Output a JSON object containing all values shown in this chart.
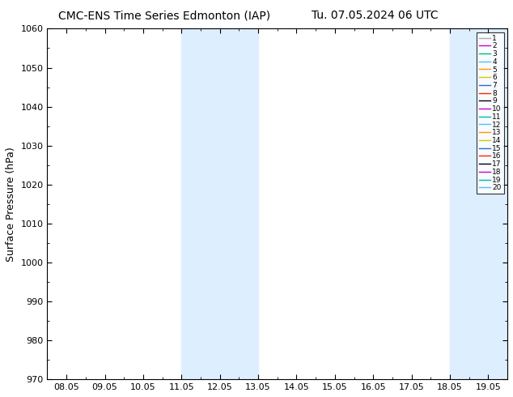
{
  "title_left": "CMC-ENS Time Series Edmonton (IAP)",
  "title_right": "Tu. 07.05.2024 06 UTC",
  "ylabel": "Surface Pressure (hPa)",
  "ylim": [
    970,
    1060
  ],
  "yticks": [
    970,
    980,
    990,
    1000,
    1010,
    1020,
    1030,
    1040,
    1050,
    1060
  ],
  "xtick_labels": [
    "08.05",
    "09.05",
    "10.05",
    "11.05",
    "12.05",
    "13.05",
    "14.05",
    "15.05",
    "16.05",
    "17.05",
    "18.05",
    "19.05"
  ],
  "shade_color": "#ddeeff",
  "background_color": "#ffffff",
  "legend_colors": [
    "#aaaaaa",
    "#cc00cc",
    "#00bb77",
    "#55bbff",
    "#ff9900",
    "#cccc00",
    "#3366cc",
    "#ff2200",
    "#000000",
    "#cc00cc",
    "#00bb99",
    "#55bbff",
    "#ff9900",
    "#cccc00",
    "#3366cc",
    "#ff2200",
    "#000000",
    "#cc00cc",
    "#00bb99",
    "#55bbff"
  ],
  "legend_labels": [
    "1",
    "2",
    "3",
    "4",
    "5",
    "6",
    "7",
    "8",
    "9",
    "10",
    "11",
    "12",
    "13",
    "14",
    "15",
    "16",
    "17",
    "18",
    "19",
    "20"
  ]
}
